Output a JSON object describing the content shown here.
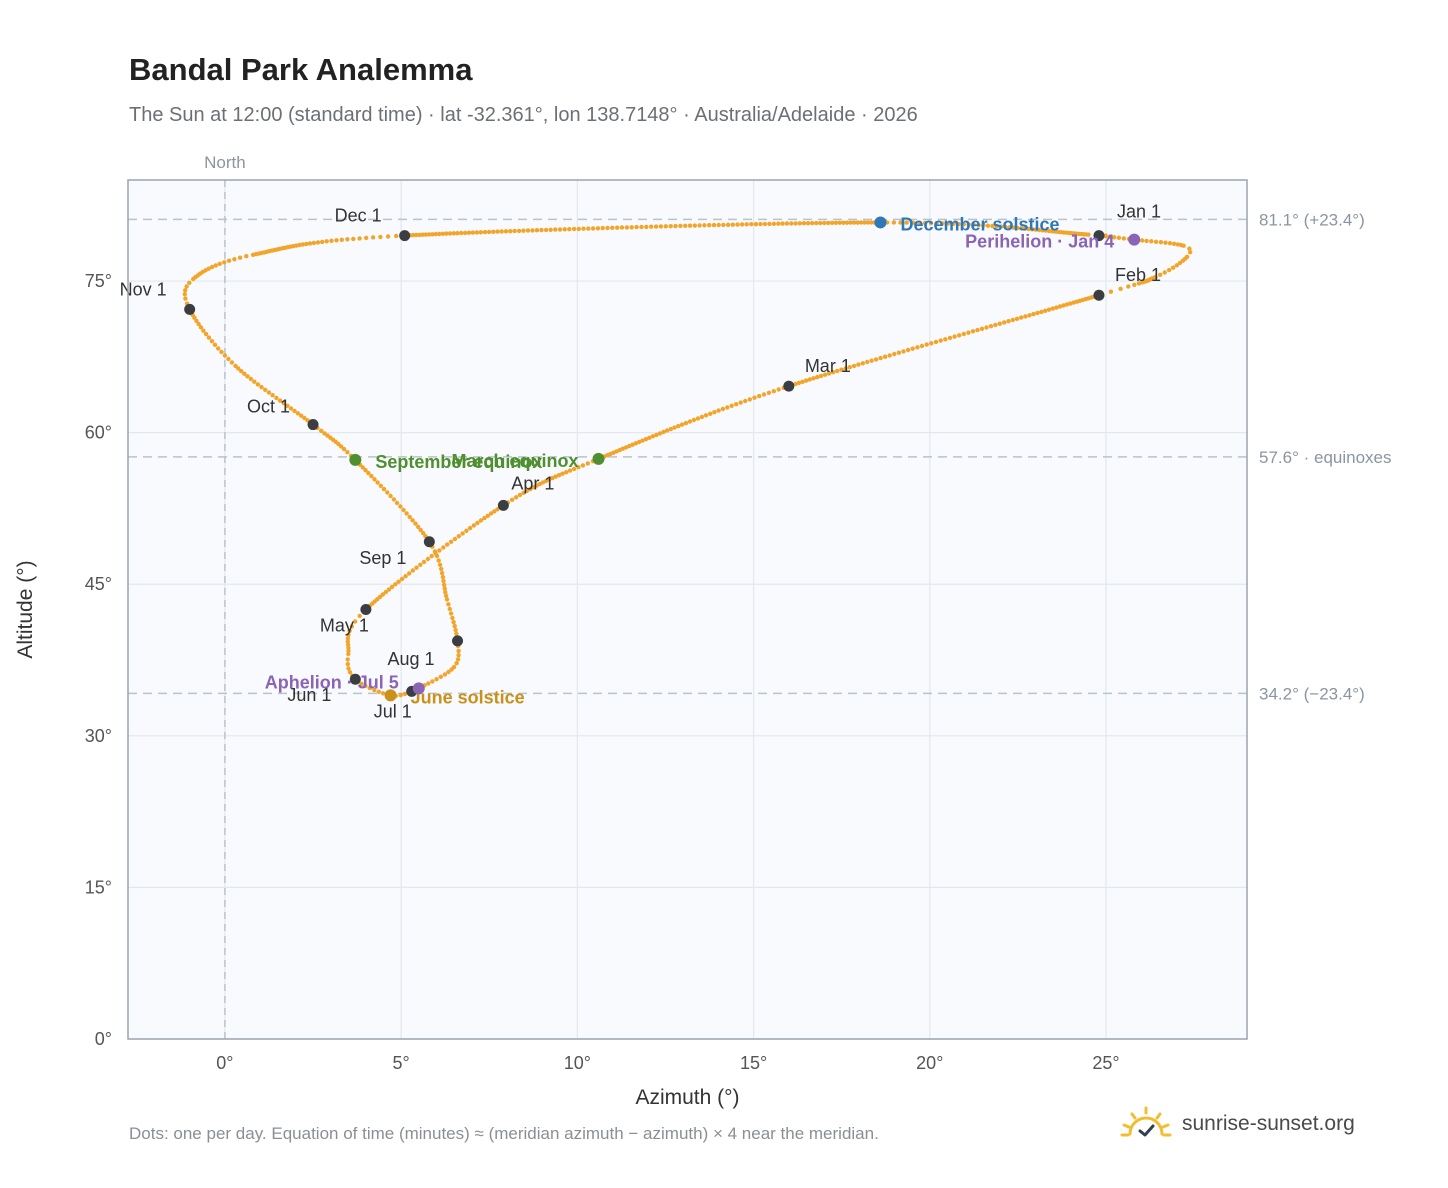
{
  "header": {
    "title": "Bandal Park Analemma",
    "subtitle": "The Sun at 12:00 (standard time) · lat -32.361°, lon 138.7148° · Australia/Adelaide · 2026"
  },
  "footer": {
    "note": "Dots: one per day. Equation of time (minutes) ≈ (meridian azimuth − azimuth) × 4 near the meridian.",
    "brand": "sunrise-sunset.org",
    "brand_icon": "sun-logo-icon"
  },
  "colors": {
    "path": "#f2a52a",
    "month_marker": "#3a3d42",
    "equinox": "#4f8f2f",
    "december_solstice": "#2f77b9",
    "june_solstice": "#c9901a",
    "apsis": "#8a64b5",
    "reference_line": "#b9c3cc",
    "grid": "#e3e8ee",
    "plot_bg": "#f8fafd",
    "frame": "#9aa4b2"
  },
  "chart_data": {
    "type": "scatter",
    "xlabel": "Azimuth (°)",
    "ylabel": "Altitude (°)",
    "xlim": [
      -2.75,
      29.0
    ],
    "ylim": [
      0,
      85
    ],
    "x_ticks": [
      0,
      5,
      10,
      15,
      20,
      25
    ],
    "x_tick_labels": [
      "0°",
      "5°",
      "10°",
      "15°",
      "20°",
      "25°"
    ],
    "y_ticks": [
      0,
      15,
      30,
      45,
      60,
      75
    ],
    "y_tick_labels": [
      "0°",
      "15°",
      "30°",
      "45°",
      "60°",
      "75°"
    ],
    "grid": true,
    "north_label": "North",
    "north_azimuth": 0,
    "reference_lines": [
      {
        "altitude": 81.1,
        "label": "81.1° (+23.4°)"
      },
      {
        "altitude": 57.6,
        "label": "57.6° · equinoxes"
      },
      {
        "altitude": 34.2,
        "label": "34.2° (−23.4°)"
      }
    ],
    "analemma_path": [
      {
        "date": "Jan 1",
        "x": 24.8,
        "y": 79.5
      },
      {
        "date": "Jan 4",
        "x": 25.8,
        "y": 79.1
      },
      {
        "date": "Jan 12",
        "x": 27.2,
        "y": 78.5
      },
      {
        "date": "Jan 18",
        "x": 27.3,
        "y": 77.4
      },
      {
        "date": "Jan 25",
        "x": 26.4,
        "y": 75.4
      },
      {
        "date": "Feb 1",
        "x": 24.8,
        "y": 73.6
      },
      {
        "date": "Mar 1",
        "x": 16.0,
        "y": 64.6
      },
      {
        "date": "Mar 20",
        "x": 10.6,
        "y": 57.4
      },
      {
        "date": "Apr 1",
        "x": 7.9,
        "y": 52.8
      },
      {
        "date": "May 1",
        "x": 4.0,
        "y": 42.5
      },
      {
        "date": "May 20",
        "x": 3.5,
        "y": 38.1
      },
      {
        "date": "Jun 1",
        "x": 3.7,
        "y": 35.6
      },
      {
        "date": "Jun 21",
        "x": 4.7,
        "y": 34.0
      },
      {
        "date": "Jul 1",
        "x": 5.3,
        "y": 34.4
      },
      {
        "date": "Jul 5",
        "x": 5.5,
        "y": 34.7
      },
      {
        "date": "Jul 20",
        "x": 6.5,
        "y": 36.8
      },
      {
        "date": "Aug 1",
        "x": 6.6,
        "y": 39.4
      },
      {
        "date": "Aug 15",
        "x": 6.3,
        "y": 43.5
      },
      {
        "date": "Sep 1",
        "x": 5.8,
        "y": 49.2
      },
      {
        "date": "Sep 22",
        "x": 3.7,
        "y": 57.3
      },
      {
        "date": "Oct 1",
        "x": 2.5,
        "y": 60.8
      },
      {
        "date": "Oct 15",
        "x": 0.3,
        "y": 66.6
      },
      {
        "date": "Nov 1",
        "x": -1.0,
        "y": 72.2
      },
      {
        "date": "Nov 10",
        "x": -0.9,
        "y": 75.2
      },
      {
        "date": "Nov 20",
        "x": 0.8,
        "y": 77.6
      },
      {
        "date": "Dec 1",
        "x": 5.1,
        "y": 79.5
      },
      {
        "date": "Dec 21",
        "x": 18.6,
        "y": 80.8
      },
      {
        "date": "Dec 31",
        "x": 24.5,
        "y": 79.6
      }
    ],
    "month_markers": [
      {
        "label": "Jan 1",
        "x": 24.8,
        "y": 79.5
      },
      {
        "label": "Feb 1",
        "x": 24.8,
        "y": 73.6
      },
      {
        "label": "Mar 1",
        "x": 16.0,
        "y": 64.6
      },
      {
        "label": "Apr 1",
        "x": 7.9,
        "y": 52.8
      },
      {
        "label": "May 1",
        "x": 4.0,
        "y": 42.5
      },
      {
        "label": "Jun 1",
        "x": 3.7,
        "y": 35.6
      },
      {
        "label": "Jul 1",
        "x": 5.3,
        "y": 34.4
      },
      {
        "label": "Aug 1",
        "x": 6.6,
        "y": 39.4
      },
      {
        "label": "Sep 1",
        "x": 5.8,
        "y": 49.2
      },
      {
        "label": "Oct 1",
        "x": 2.5,
        "y": 60.8
      },
      {
        "label": "Nov 1",
        "x": -1.0,
        "y": 72.2
      },
      {
        "label": "Dec 1",
        "x": 5.1,
        "y": 79.5
      }
    ],
    "events": [
      {
        "label": "December solstice",
        "x": 18.6,
        "y": 80.8,
        "kind": "december_solstice"
      },
      {
        "label": "Perihelion · Jan 4",
        "x": 25.8,
        "y": 79.1,
        "kind": "apsis"
      },
      {
        "label": "March equinox",
        "x": 10.6,
        "y": 57.4,
        "kind": "equinox"
      },
      {
        "label": "September equinox",
        "x": 3.7,
        "y": 57.3,
        "kind": "equinox"
      },
      {
        "label": "June solstice",
        "x": 4.7,
        "y": 34.0,
        "kind": "june_solstice"
      },
      {
        "label": "Aphelion · Jul 5",
        "x": 5.5,
        "y": 34.7,
        "kind": "apsis"
      }
    ]
  }
}
